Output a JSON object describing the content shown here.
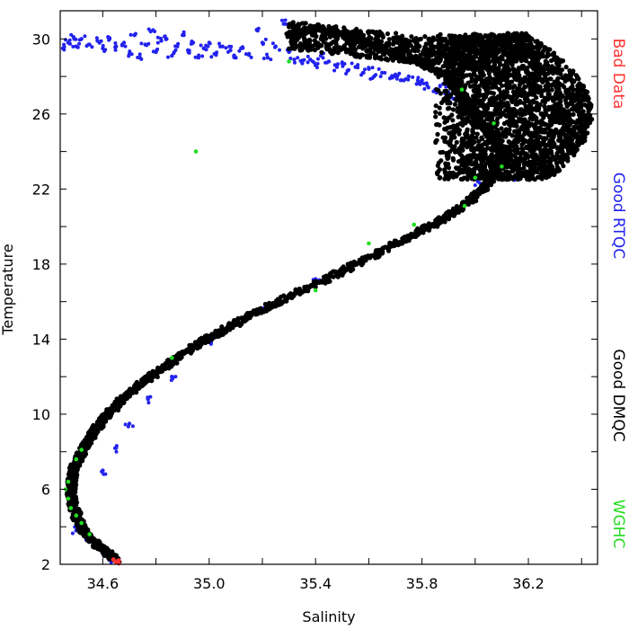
{
  "chart_data": {
    "type": "scatter",
    "title": "",
    "xlabel": "Salinity",
    "ylabel": "Temperature",
    "xlim": [
      34.44,
      36.46
    ],
    "ylim": [
      2,
      31.5
    ],
    "xticks": [
      34.6,
      35.0,
      35.4,
      35.8,
      36.2
    ],
    "xtick_labels": [
      "34.6",
      "35.0",
      "35.4",
      "35.8",
      "36.2"
    ],
    "yticks": [
      2,
      6,
      10,
      14,
      18,
      22,
      26,
      30
    ],
    "ytick_labels": [
      "2",
      "6",
      "10",
      "14",
      "18",
      "22",
      "26",
      "30"
    ],
    "grid": false,
    "legend_placement": "right",
    "series": [
      {
        "name": "Bad Data",
        "color": "#ff3333",
        "points": [
          [
            34.65,
            2.1
          ],
          [
            34.66,
            2.2
          ],
          [
            34.655,
            2.15
          ],
          [
            34.64,
            2.25
          ],
          [
            34.66,
            2.05
          ]
        ]
      },
      {
        "name": "Good RTQC",
        "color": "#2222ee",
        "points": [
          [
            34.45,
            29.5
          ],
          [
            34.47,
            29.8
          ],
          [
            34.49,
            30.1
          ],
          [
            34.5,
            29.6
          ],
          [
            34.52,
            30.0
          ],
          [
            34.55,
            29.7
          ],
          [
            34.58,
            29.9
          ],
          [
            34.6,
            29.5
          ],
          [
            34.62,
            30.1
          ],
          [
            34.65,
            29.6
          ],
          [
            34.68,
            29.8
          ],
          [
            34.7,
            29.2
          ],
          [
            34.72,
            30.2
          ],
          [
            34.74,
            29.0
          ],
          [
            34.76,
            29.7
          ],
          [
            34.78,
            30.4
          ],
          [
            34.8,
            29.3
          ],
          [
            34.82,
            29.9
          ],
          [
            34.84,
            30.0
          ],
          [
            34.86,
            29.1
          ],
          [
            34.88,
            29.6
          ],
          [
            34.9,
            30.2
          ],
          [
            34.92,
            29.4
          ],
          [
            34.94,
            29.8
          ],
          [
            34.96,
            29.0
          ],
          [
            34.98,
            29.5
          ],
          [
            35.0,
            29.8
          ],
          [
            35.02,
            29.2
          ],
          [
            35.05,
            29.6
          ],
          [
            35.08,
            29.4
          ],
          [
            35.1,
            29.0
          ],
          [
            35.12,
            29.5
          ],
          [
            35.15,
            29.2
          ],
          [
            35.18,
            30.5
          ],
          [
            35.2,
            29.8
          ],
          [
            35.22,
            29.0
          ],
          [
            35.25,
            29.6
          ],
          [
            35.28,
            30.8
          ],
          [
            35.3,
            29.3
          ],
          [
            35.32,
            28.9
          ],
          [
            35.35,
            28.7
          ],
          [
            35.38,
            28.9
          ],
          [
            35.4,
            28.6
          ],
          [
            35.42,
            29.1
          ],
          [
            35.45,
            28.8
          ],
          [
            35.48,
            28.5
          ],
          [
            35.5,
            28.7
          ],
          [
            35.52,
            28.3
          ],
          [
            35.55,
            28.5
          ],
          [
            35.58,
            28.2
          ],
          [
            35.6,
            28.4
          ],
          [
            35.62,
            28.0
          ],
          [
            35.65,
            28.2
          ],
          [
            35.68,
            27.9
          ],
          [
            35.7,
            28.1
          ],
          [
            35.72,
            27.8
          ],
          [
            35.75,
            28.0
          ],
          [
            35.78,
            27.6
          ],
          [
            35.8,
            27.8
          ],
          [
            35.82,
            27.5
          ],
          [
            35.85,
            27.3
          ],
          [
            35.88,
            27.6
          ],
          [
            35.9,
            27.0
          ],
          [
            35.92,
            26.8
          ],
          [
            35.95,
            27.2
          ],
          [
            35.97,
            26.4
          ],
          [
            36.0,
            26.0
          ],
          [
            36.02,
            25.4
          ],
          [
            36.05,
            25.0
          ],
          [
            36.07,
            24.4
          ],
          [
            36.1,
            23.8
          ],
          [
            36.12,
            23.2
          ],
          [
            36.15,
            22.5
          ],
          [
            35.95,
            23.3
          ],
          [
            35.98,
            22.8
          ],
          [
            36.01,
            22.4
          ],
          [
            35.4,
            17.2
          ],
          [
            35.2,
            15.6
          ],
          [
            35.0,
            13.9
          ],
          [
            34.86,
            12.0
          ],
          [
            34.77,
            10.8
          ],
          [
            34.7,
            9.5
          ],
          [
            34.65,
            8.2
          ],
          [
            34.6,
            7.0
          ],
          [
            34.5,
            3.8
          ],
          [
            34.55,
            3.2
          ],
          [
            34.6,
            2.6
          ],
          [
            34.63,
            2.3
          ]
        ]
      },
      {
        "name": "Good DMQC",
        "color": "#000000",
        "points": []
      },
      {
        "name": "WGHC",
        "color": "#22dd22",
        "points": [
          [
            34.47,
            6.4
          ],
          [
            34.46,
            6.0
          ],
          [
            34.47,
            5.5
          ],
          [
            34.48,
            5.0
          ],
          [
            34.5,
            4.6
          ],
          [
            34.52,
            4.2
          ],
          [
            34.55,
            3.6
          ],
          [
            34.52,
            8.1
          ],
          [
            34.5,
            7.6
          ],
          [
            35.3,
            28.8
          ],
          [
            35.95,
            27.3
          ],
          [
            36.07,
            25.5
          ],
          [
            36.1,
            23.2
          ],
          [
            35.96,
            21.1
          ],
          [
            35.77,
            20.1
          ],
          [
            35.6,
            19.1
          ],
          [
            35.4,
            16.6
          ],
          [
            34.86,
            13.0
          ],
          [
            34.95,
            24.0
          ],
          [
            36.0,
            22.6
          ]
        ]
      }
    ],
    "dmqc_curve": [
      [
        34.65,
        2.2
      ],
      [
        34.58,
        3.0
      ],
      [
        34.52,
        4.0
      ],
      [
        34.49,
        5.0
      ],
      [
        34.48,
        6.0
      ],
      [
        34.49,
        7.0
      ],
      [
        34.52,
        8.0
      ],
      [
        34.56,
        9.0
      ],
      [
        34.62,
        10.0
      ],
      [
        34.69,
        11.0
      ],
      [
        34.78,
        12.0
      ],
      [
        34.88,
        13.0
      ],
      [
        34.99,
        14.0
      ],
      [
        35.12,
        15.0
      ],
      [
        35.26,
        16.0
      ],
      [
        35.41,
        17.0
      ],
      [
        35.55,
        18.0
      ],
      [
        35.69,
        19.0
      ],
      [
        35.83,
        20.0
      ],
      [
        35.95,
        21.0
      ],
      [
        36.03,
        22.0
      ],
      [
        36.08,
        23.0
      ],
      [
        36.1,
        24.0
      ],
      [
        36.05,
        25.0
      ],
      [
        36.0,
        26.0
      ],
      [
        35.95,
        27.0
      ],
      [
        35.9,
        28.0
      ],
      [
        35.75,
        29.0
      ],
      [
        35.55,
        30.0
      ],
      [
        35.4,
        30.6
      ],
      [
        35.3,
        30.2
      ]
    ],
    "dmqc_cloud": {
      "center": [
        36.3,
        26.0
      ],
      "spread_x": [
        35.85,
        36.46
      ],
      "spread_y": [
        22.5,
        30.3
      ]
    }
  }
}
